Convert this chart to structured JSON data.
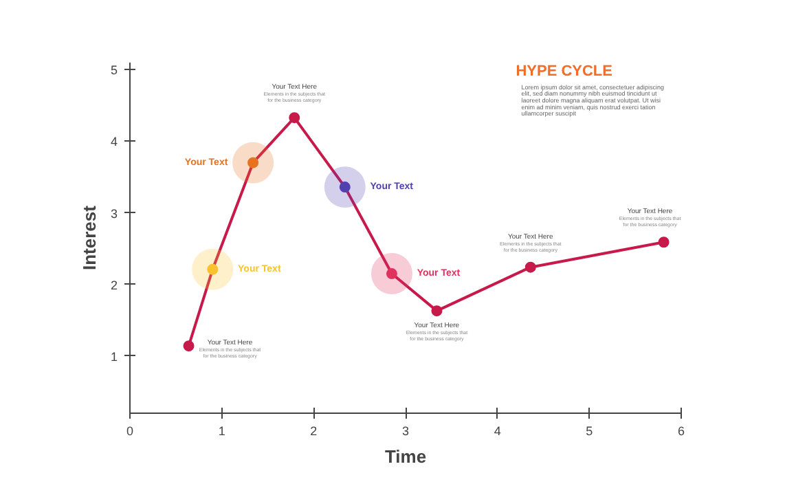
{
  "chart_data": {
    "type": "line",
    "title": "HYPE CYCLE",
    "subtitle": "Lorem ipsum dolor sit amet, consectetuer adipiscing elit, sed diam nonummy nibh euismod tincidunt ut laoreet dolore magna aliquam erat volutpat. Ut wisi enim ad minim veniam, quis nostrud exerci tation ullamcorper suscipit",
    "xlabel": "Time",
    "ylabel": "Interest",
    "x": [
      0.64,
      0.9,
      1.34,
      1.79,
      2.34,
      2.85,
      3.34,
      4.36,
      5.81
    ],
    "series": [
      {
        "color": "#c8194b",
        "values": [
          1.14,
          2.21,
          3.7,
          4.33,
          3.36,
          2.15,
          1.63,
          2.24,
          2.59
        ],
        "colors": [
          "#c8194b",
          "#f9c22e",
          "#e8731f",
          "#c8194b",
          "#5340b0",
          "#e0325e",
          "#c8194b",
          "#c8194b",
          "#c8194b"
        ]
      }
    ],
    "xlim": [
      0,
      6
    ],
    "ylim": [
      0.2,
      5.1
    ],
    "xticks": [
      0,
      1,
      2,
      3,
      4,
      5,
      6
    ],
    "yticks": [
      1,
      2,
      3,
      4,
      5
    ],
    "marker": "circle",
    "line_style": "solid",
    "grid": false,
    "annotations": [
      "Your Text Here",
      "Elements in the subjects that for the business category",
      "Your Text",
      "Your Text",
      "Your Text Here",
      "Elements in the subjects that for the business category",
      "Your Text",
      "Your Text",
      "Your Text Here",
      "Elements in the subjects that for the business category",
      "Your Text Here",
      "Elements in the subjects that for the business category",
      "Your Text Here",
      "Elements in the subjects that for the business category"
    ]
  }
}
